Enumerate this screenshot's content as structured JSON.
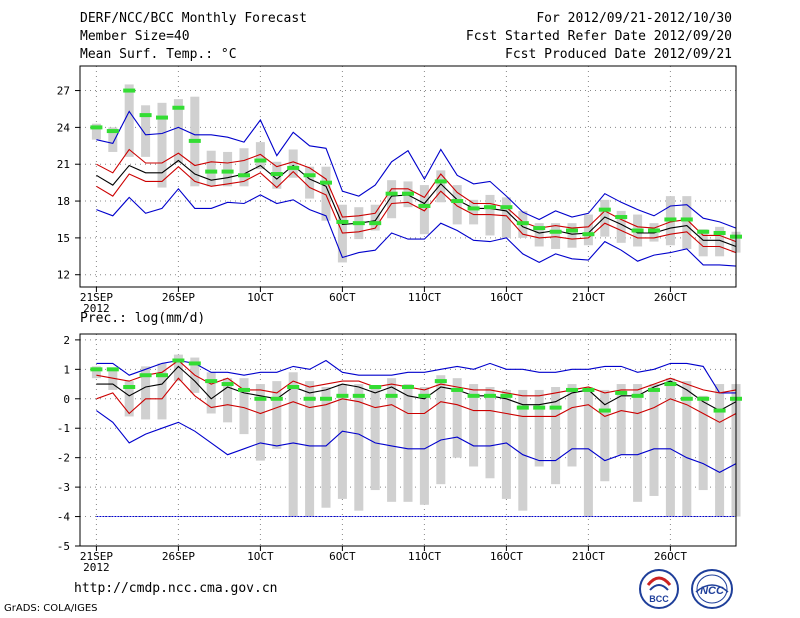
{
  "header": {
    "title": "DERF/NCC/BCC Monthly Forecast",
    "member_size": "Member Size=40",
    "variable": "Mean Surf. Temp.: °C",
    "period": "For 2012/09/21-2012/10/30",
    "started": "Fcst Started Refer Date 2012/09/20",
    "produced": "Fcst Produced Date 2012/09/21"
  },
  "footer": {
    "url": "http://cmdp.ncc.cma.gov.cn",
    "credit": "GrADS: COLA/IGES"
  },
  "logos": {
    "left": "BCC",
    "right": "NCC"
  },
  "colors": {
    "box": "#d0d0d0",
    "obs": "#33dd33",
    "mean": "#000000",
    "spread": "#cc0000",
    "extreme": "#0000cc",
    "grid": "#888888"
  },
  "chart_data": [
    {
      "type": "line",
      "title": "Mean Surf. Temp.: °C",
      "x_ticks": [
        {
          "day": 0,
          "label": "21SEP",
          "sub": "2012"
        },
        {
          "day": 5,
          "label": "26SEP"
        },
        {
          "day": 10,
          "label": "1OCT"
        },
        {
          "day": 15,
          "label": "6OCT"
        },
        {
          "day": 20,
          "label": "11OCT"
        },
        {
          "day": 25,
          "label": "16OCT"
        },
        {
          "day": 30,
          "label": "21OCT"
        },
        {
          "day": 35,
          "label": "26OCT"
        }
      ],
      "x_range": [
        -1,
        39
      ],
      "ylim": [
        11,
        29
      ],
      "y_ticks": [
        12,
        15,
        18,
        21,
        24,
        27
      ],
      "mean": [
        20.1,
        19.3,
        20.9,
        20.3,
        20.3,
        21.3,
        20.2,
        19.7,
        19.9,
        20.2,
        20.9,
        19.8,
        20.9,
        19.8,
        19.2,
        16.1,
        16.2,
        16.4,
        18.4,
        18.5,
        17.8,
        19.4,
        18.1,
        17.4,
        17.4,
        17.2,
        15.9,
        15.4,
        15.6,
        15.3,
        15.4,
        16.7,
        16.1,
        15.4,
        15.4,
        15.8,
        16.0,
        14.8,
        14.8,
        14.3
      ],
      "upper": [
        21.0,
        20.3,
        22.2,
        21.1,
        21.1,
        21.9,
        20.9,
        21.2,
        21.1,
        21.3,
        21.8,
        20.8,
        21.2,
        20.7,
        19.8,
        16.7,
        16.8,
        17.0,
        19.0,
        19.0,
        18.3,
        20.2,
        18.7,
        17.8,
        17.8,
        17.5,
        16.3,
        15.8,
        16.0,
        15.8,
        15.9,
        17.2,
        16.5,
        15.9,
        15.8,
        16.3,
        16.5,
        15.2,
        15.2,
        14.7
      ],
      "lower": [
        19.2,
        18.4,
        20.2,
        19.6,
        19.6,
        20.8,
        19.6,
        19.2,
        19.4,
        19.6,
        20.3,
        19.1,
        20.4,
        19.1,
        18.5,
        15.4,
        15.5,
        15.8,
        17.8,
        17.9,
        17.2,
        18.8,
        17.6,
        16.9,
        16.9,
        16.8,
        15.3,
        15.0,
        15.1,
        14.9,
        15.0,
        16.2,
        15.6,
        15.0,
        15.0,
        15.3,
        15.5,
        14.3,
        14.3,
        13.8
      ],
      "max": [
        23.0,
        22.7,
        25.3,
        23.4,
        23.5,
        24.0,
        23.4,
        23.4,
        23.2,
        22.8,
        24.6,
        21.7,
        23.6,
        22.5,
        22.3,
        18.8,
        18.4,
        19.3,
        21.2,
        22.1,
        19.8,
        22.2,
        20.1,
        19.4,
        19.6,
        18.4,
        17.1,
        16.5,
        17.2,
        16.7,
        17.0,
        18.6,
        17.9,
        17.3,
        16.8,
        17.6,
        17.7,
        16.6,
        16.3,
        15.8
      ],
      "min": [
        17.3,
        16.8,
        18.3,
        17.0,
        17.4,
        19.0,
        17.4,
        17.4,
        17.9,
        17.8,
        18.5,
        17.8,
        18.1,
        17.3,
        16.8,
        13.4,
        13.8,
        14.0,
        15.4,
        14.9,
        14.9,
        16.2,
        15.6,
        14.8,
        14.7,
        15.0,
        13.7,
        13.0,
        13.7,
        13.3,
        13.2,
        14.7,
        14.0,
        13.1,
        13.6,
        13.8,
        14.1,
        12.8,
        12.8,
        12.7
      ],
      "box_top": [
        24.3,
        24.0,
        27.5,
        25.8,
        26.0,
        26.3,
        26.5,
        22.1,
        22.0,
        22.3,
        22.8,
        21.2,
        22.2,
        20.8,
        20.8,
        17.7,
        17.5,
        17.7,
        19.7,
        19.6,
        19.3,
        20.5,
        19.3,
        18.1,
        18.5,
        18.3,
        17.2,
        16.2,
        16.2,
        16.2,
        16.9,
        18.1,
        17.2,
        16.9,
        16.2,
        18.4,
        18.4,
        15.7,
        15.9,
        15.5
      ],
      "box_bottom": [
        23.0,
        22.0,
        21.6,
        21.6,
        19.1,
        21.1,
        19.2,
        19.2,
        19.2,
        19.2,
        20.6,
        19.0,
        19.9,
        18.2,
        16.4,
        13.0,
        14.9,
        15.6,
        16.6,
        17.5,
        15.3,
        17.9,
        16.1,
        16.1,
        15.2,
        15.0,
        15.0,
        14.3,
        14.1,
        14.2,
        14.4,
        15.1,
        14.6,
        14.3,
        14.7,
        14.4,
        14.1,
        13.5,
        13.5,
        13.8
      ],
      "obs": [
        24.0,
        23.7,
        27.0,
        25.0,
        24.8,
        25.6,
        22.9,
        20.4,
        20.4,
        20.1,
        21.3,
        20.2,
        20.7,
        20.1,
        19.5,
        16.3,
        16.2,
        16.2,
        18.6,
        18.6,
        17.6,
        19.6,
        18.0,
        17.4,
        17.5,
        17.5,
        16.2,
        15.8,
        15.5,
        15.6,
        15.3,
        17.3,
        16.7,
        15.6,
        15.6,
        16.5,
        16.5,
        15.5,
        15.4,
        15.1
      ]
    },
    {
      "type": "line",
      "title": "Prec.: log(mm/d)",
      "x_ticks": [
        {
          "day": 0,
          "label": "21SEP",
          "sub": "2012"
        },
        {
          "day": 5,
          "label": "26SEP"
        },
        {
          "day": 10,
          "label": "1OCT"
        },
        {
          "day": 15,
          "label": "6OCT"
        },
        {
          "day": 20,
          "label": "11OCT"
        },
        {
          "day": 25,
          "label": "16OCT"
        },
        {
          "day": 30,
          "label": "21OCT"
        },
        {
          "day": 35,
          "label": "26OCT"
        }
      ],
      "x_range": [
        -1,
        39
      ],
      "ylim": [
        -5,
        2.2
      ],
      "y_ticks": [
        -5,
        -4,
        -3,
        -2,
        -1,
        0,
        1,
        2
      ],
      "mean": [
        0.5,
        0.5,
        0.1,
        0.4,
        0.5,
        1.1,
        0.6,
        0.0,
        0.4,
        0.2,
        0.1,
        0.0,
        0.4,
        0.2,
        0.3,
        0.5,
        0.4,
        0.2,
        0.4,
        0.1,
        0.0,
        0.4,
        0.3,
        0.1,
        0.1,
        0.0,
        -0.2,
        -0.2,
        -0.1,
        0.2,
        0.3,
        -0.2,
        0.1,
        0.1,
        0.4,
        0.6,
        0.3,
        -0.1,
        -0.4,
        -0.1
      ],
      "upper": [
        0.8,
        0.7,
        0.6,
        0.8,
        0.9,
        1.3,
        0.8,
        0.5,
        0.7,
        0.3,
        0.3,
        0.2,
        0.6,
        0.4,
        0.5,
        0.6,
        0.6,
        0.4,
        0.5,
        0.4,
        0.3,
        0.5,
        0.4,
        0.3,
        0.3,
        0.2,
        0.1,
        0.1,
        0.2,
        0.3,
        0.4,
        0.2,
        0.3,
        0.3,
        0.5,
        0.7,
        0.5,
        0.3,
        0.2,
        0.3
      ],
      "lower": [
        0.0,
        0.2,
        -0.5,
        0.0,
        0.0,
        0.7,
        0.1,
        -0.3,
        -0.2,
        -0.3,
        -0.5,
        -0.3,
        -0.1,
        -0.3,
        -0.2,
        0.0,
        -0.1,
        -0.3,
        -0.2,
        -0.5,
        -0.5,
        -0.1,
        -0.2,
        -0.4,
        -0.4,
        -0.5,
        -0.6,
        -0.6,
        -0.6,
        -0.3,
        -0.2,
        -0.6,
        -0.4,
        -0.5,
        -0.3,
        0.0,
        -0.2,
        -0.5,
        -0.8,
        -0.5
      ],
      "max": [
        1.2,
        1.2,
        0.8,
        1.0,
        1.2,
        1.3,
        1.2,
        0.9,
        0.9,
        0.8,
        0.9,
        0.9,
        1.1,
        1.0,
        1.3,
        0.9,
        0.8,
        0.8,
        0.8,
        0.9,
        0.9,
        1.0,
        1.1,
        1.0,
        1.2,
        1.0,
        1.0,
        0.9,
        0.9,
        1.0,
        1.0,
        1.1,
        1.1,
        0.9,
        1.0,
        1.2,
        1.2,
        1.1,
        0.2,
        0.2
      ],
      "min": [
        -0.4,
        -0.8,
        -1.5,
        -1.2,
        -1.0,
        -0.8,
        -1.1,
        -1.5,
        -1.9,
        -1.7,
        -1.5,
        -1.6,
        -1.5,
        -1.6,
        -1.6,
        -1.1,
        -1.2,
        -1.5,
        -1.6,
        -1.7,
        -1.7,
        -1.4,
        -1.3,
        -1.6,
        -1.6,
        -1.5,
        -1.9,
        -2.1,
        -2.1,
        -1.7,
        -1.7,
        -2.1,
        -1.9,
        -1.9,
        -1.7,
        -1.7,
        -2.0,
        -2.2,
        -2.5,
        -2.2
      ],
      "box_top": [
        1.1,
        1.0,
        0.6,
        1.1,
        1.2,
        1.5,
        1.4,
        0.9,
        0.7,
        0.7,
        0.5,
        0.6,
        0.9,
        0.6,
        0.4,
        0.5,
        0.5,
        0.4,
        0.7,
        0.5,
        0.4,
        0.8,
        0.7,
        0.5,
        0.4,
        0.3,
        0.3,
        0.3,
        0.4,
        0.5,
        0.4,
        0.3,
        0.5,
        0.5,
        0.5,
        0.7,
        0.6,
        0.1,
        0.5,
        0.5
      ],
      "box_bottom": [
        0.7,
        0.3,
        -0.6,
        -0.7,
        -0.7,
        0.6,
        0.2,
        -0.5,
        -0.8,
        -1.2,
        -2.1,
        -1.7,
        -4.0,
        -4.0,
        -3.7,
        -3.4,
        -3.8,
        -3.1,
        -3.5,
        -3.5,
        -3.6,
        -2.9,
        -2.0,
        -2.3,
        -2.7,
        -3.4,
        -3.8,
        -2.3,
        -2.9,
        -2.3,
        -4.0,
        -2.8,
        -1.9,
        -3.5,
        -3.3,
        -4.0,
        -4.0,
        -3.1,
        -4.0,
        -4.0
      ],
      "obs": [
        1.0,
        1.0,
        0.4,
        0.8,
        0.8,
        1.3,
        1.2,
        0.6,
        0.5,
        0.3,
        0.0,
        0.0,
        0.4,
        0.0,
        0.0,
        0.1,
        0.1,
        0.4,
        0.1,
        0.4,
        0.1,
        0.6,
        0.3,
        0.1,
        0.1,
        0.1,
        -0.3,
        -0.3,
        -0.3,
        0.3,
        0.3,
        -0.4,
        0.2,
        0.1,
        0.3,
        0.5,
        0.0,
        0.0,
        -0.4,
        0.0
      ],
      "floor": -4.0
    }
  ]
}
